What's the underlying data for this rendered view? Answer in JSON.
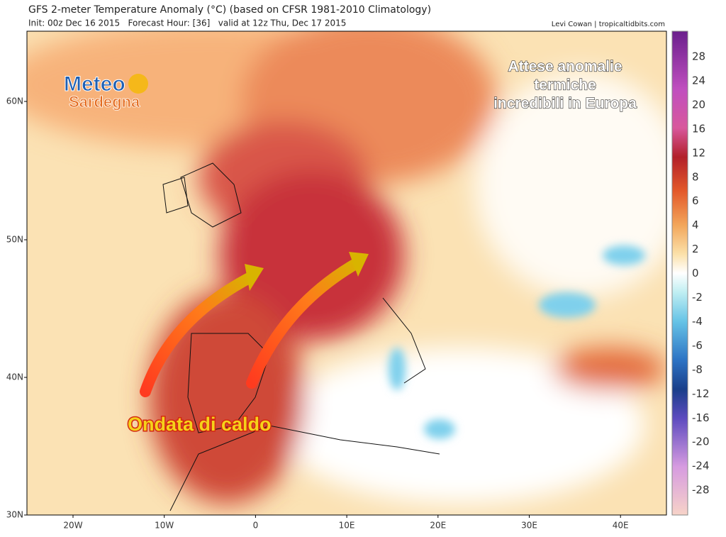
{
  "header": {
    "title": "GFS 2-meter Temperature Anomaly (°C) (based on CFSR 1981-2010 Climatology)",
    "subtitle": "Init: 00z Dec 16 2015   Forecast Hour: [36]   valid at 12z Thu, Dec 17 2015",
    "credit": "Levi Cowan | tropicaltidbits.com"
  },
  "map": {
    "lat_labels": [
      "60N",
      "50N",
      "40N",
      "30N"
    ],
    "lon_labels": [
      "20W",
      "10W",
      "0",
      "10E",
      "20E",
      "30E",
      "40E"
    ]
  },
  "colorbar": {
    "labels": [
      "28",
      "24",
      "20",
      "16",
      "12",
      "8",
      "6",
      "4",
      "2",
      "0",
      "-2",
      "-4",
      "-6",
      "-8",
      "-12",
      "-16",
      "-20",
      "-24",
      "-28"
    ]
  },
  "overlay": {
    "logo_line1": "Meteo",
    "logo_line2": "Sardegna",
    "headline": [
      "Attese anomalie",
      "termiche",
      "incredibili in Europa"
    ],
    "arrow_caption": "Ondata di caldo"
  }
}
